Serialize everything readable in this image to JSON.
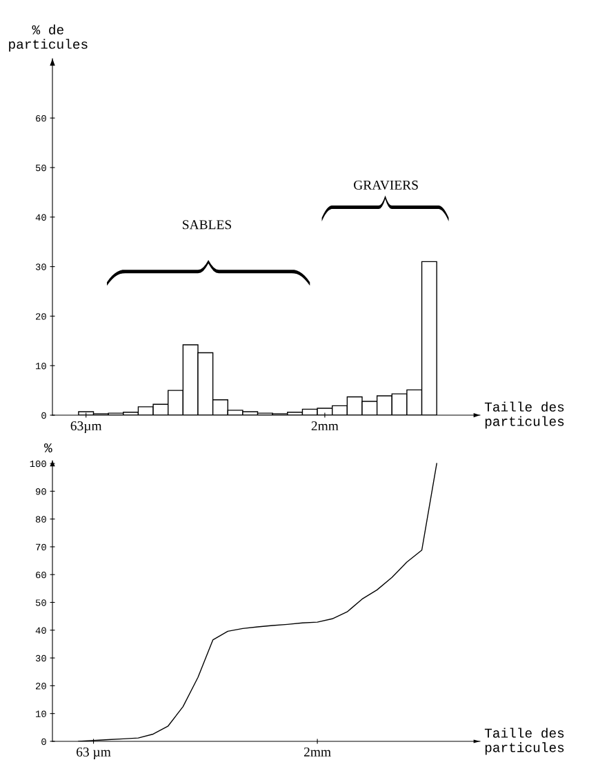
{
  "chart_data": [
    {
      "type": "bar",
      "ylabel": "% de\nparticules",
      "xlabel": "Taille des\nparticules",
      "categories": [
        "63µm",
        null,
        null,
        null,
        null,
        null,
        null,
        null,
        null,
        null,
        null,
        null,
        null,
        null,
        null,
        null,
        "2mm",
        null,
        null,
        null,
        null,
        null,
        null,
        null
      ],
      "values": [
        0.7,
        0.3,
        0.4,
        0.6,
        1.7,
        2.2,
        5.0,
        14.2,
        12.6,
        3.1,
        1.0,
        0.7,
        0.4,
        0.3,
        0.6,
        1.2,
        1.4,
        1.9,
        3.7,
        2.8,
        3.9,
        4.3,
        5.1,
        31
      ],
      "color": "#ffffff",
      "ylim": [
        0,
        72
      ],
      "yticks": [
        0,
        10,
        20,
        30,
        40,
        50,
        60
      ],
      "grid": false,
      "annotations": [
        "SABLES",
        "GRAVIERS"
      ]
    },
    {
      "type": "line",
      "ylabel": "%",
      "xlabel": "Taille des\nparticules",
      "categories": [
        null,
        "63 µm",
        null,
        null,
        null,
        null,
        null,
        null,
        null,
        null,
        null,
        null,
        null,
        null,
        null,
        null,
        "2mm",
        null,
        null,
        null,
        null,
        null,
        null,
        null,
        null
      ],
      "values": [
        0,
        0.3,
        0.6,
        0.9,
        1.2,
        2.6,
        5.5,
        12.5,
        23,
        36.5,
        39.6,
        40.6,
        41.2,
        41.7,
        42.1,
        42.6,
        42.9,
        44.1,
        46.6,
        51.2,
        54.5,
        59,
        64.5,
        68.8,
        100
      ],
      "color": "#000000",
      "ylim": [
        0,
        101
      ],
      "yticks": [
        0,
        10,
        20,
        30,
        40,
        50,
        60,
        70,
        80,
        90,
        100
      ],
      "grid": false
    }
  ]
}
